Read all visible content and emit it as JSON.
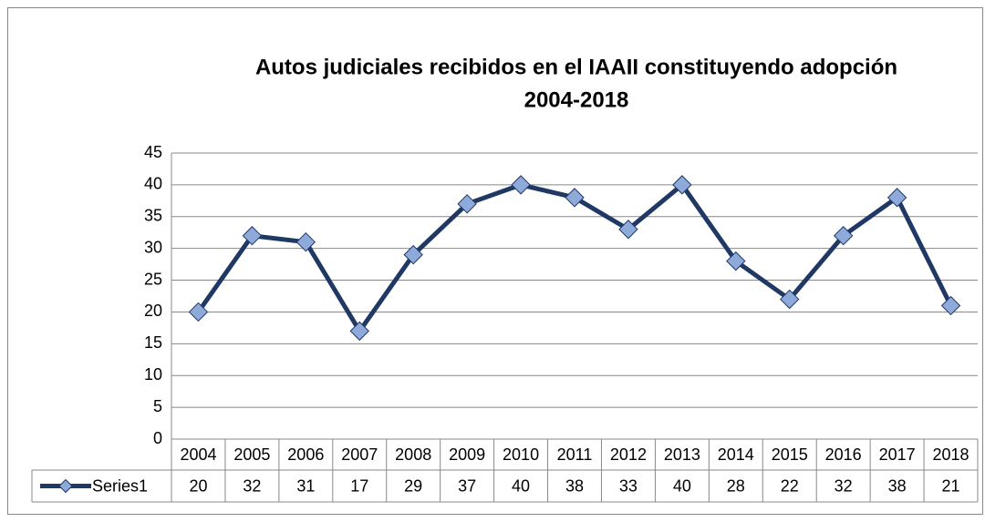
{
  "chart_data": {
    "type": "line",
    "title": [
      "Autos judiciales recibidos en el IAAII constituyendo adopción",
      "2004-2018"
    ],
    "categories": [
      "2004",
      "2005",
      "2006",
      "2007",
      "2008",
      "2009",
      "2010",
      "2011",
      "2012",
      "2013",
      "2014",
      "2015",
      "2016",
      "2017",
      "2018"
    ],
    "series": [
      {
        "name": "Series1",
        "color": "#1f3864",
        "marker_color": "#8eaadb",
        "values": [
          20,
          32,
          31,
          17,
          29,
          37,
          40,
          38,
          33,
          40,
          28,
          22,
          32,
          38,
          21
        ]
      }
    ],
    "ylim": [
      0,
      45
    ],
    "yticks": [
      0,
      5,
      10,
      15,
      20,
      25,
      30,
      35,
      40,
      45
    ],
    "grid": true,
    "data_table": true
  }
}
